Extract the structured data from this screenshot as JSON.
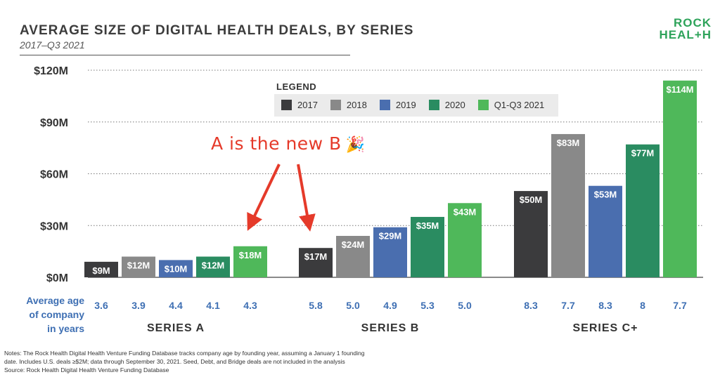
{
  "header": {
    "title": "AVERAGE SIZE OF DIGITAL HEALTH DEALS, BY SERIES",
    "subtitle": "2017–Q3 2021",
    "logo_line1": "ROCK",
    "logo_line2": "HEAL+H"
  },
  "legend": {
    "title": "LEGEND",
    "items": [
      {
        "label": "2017",
        "color": "#3b3b3d"
      },
      {
        "label": "2018",
        "color": "#898989"
      },
      {
        "label": "2019",
        "color": "#4a6eaf"
      },
      {
        "label": "2020",
        "color": "#2a8c61"
      },
      {
        "label": "Q1-Q3 2021",
        "color": "#4fb85a"
      }
    ]
  },
  "annotation": {
    "text": "A is the new B",
    "emoji": "🎉"
  },
  "age_row": {
    "label_line1": "Average age",
    "label_line2": "of company",
    "label_line3": "in years"
  },
  "chart_data": {
    "type": "bar",
    "ylim": [
      0,
      120
    ],
    "yticks": [
      0,
      30,
      60,
      90,
      120
    ],
    "ytick_labels": [
      "$0M",
      "$30M",
      "$60M",
      "$90M",
      "$120M"
    ],
    "grid": true,
    "legend_placement": "top-center",
    "categories": [
      "SERIES A",
      "SERIES B",
      "SERIES C+"
    ],
    "series": [
      {
        "name": "2017",
        "values": [
          9,
          17,
          50
        ],
        "labels": [
          "$9M",
          "$17M",
          "$50M"
        ],
        "ages": [
          "3.6",
          "5.8",
          "8.3"
        ]
      },
      {
        "name": "2018",
        "values": [
          12,
          24,
          83
        ],
        "labels": [
          "$12M",
          "$24M",
          "$83M"
        ],
        "ages": [
          "3.9",
          "5.0",
          "7.7"
        ]
      },
      {
        "name": "2019",
        "values": [
          10,
          29,
          53
        ],
        "labels": [
          "$10M",
          "$29M",
          "$53M"
        ],
        "ages": [
          "4.4",
          "4.9",
          "8.3"
        ]
      },
      {
        "name": "2020",
        "values": [
          12,
          35,
          77
        ],
        "labels": [
          "$12M",
          "$35M",
          "$77M"
        ],
        "ages": [
          "4.1",
          "5.3",
          "8"
        ]
      },
      {
        "name": "Q1-Q3 2021",
        "values": [
          18,
          43,
          114
        ],
        "labels": [
          "$18M",
          "$43M",
          "$114M"
        ],
        "ages": [
          "4.3",
          "5.0",
          "7.7"
        ]
      }
    ]
  },
  "notes": {
    "line1": "Notes: The Rock Health Digital Health Venture Funding Database tracks company age by founding year, assuming a January 1 founding",
    "line2": "date. Includes U.S. deals ≥$2M; data through September 30, 2021. Seed, Debt, and Bridge deals are not included in the analysis",
    "line3": "Source: Rock Health Digital Health Venture Funding Database"
  }
}
